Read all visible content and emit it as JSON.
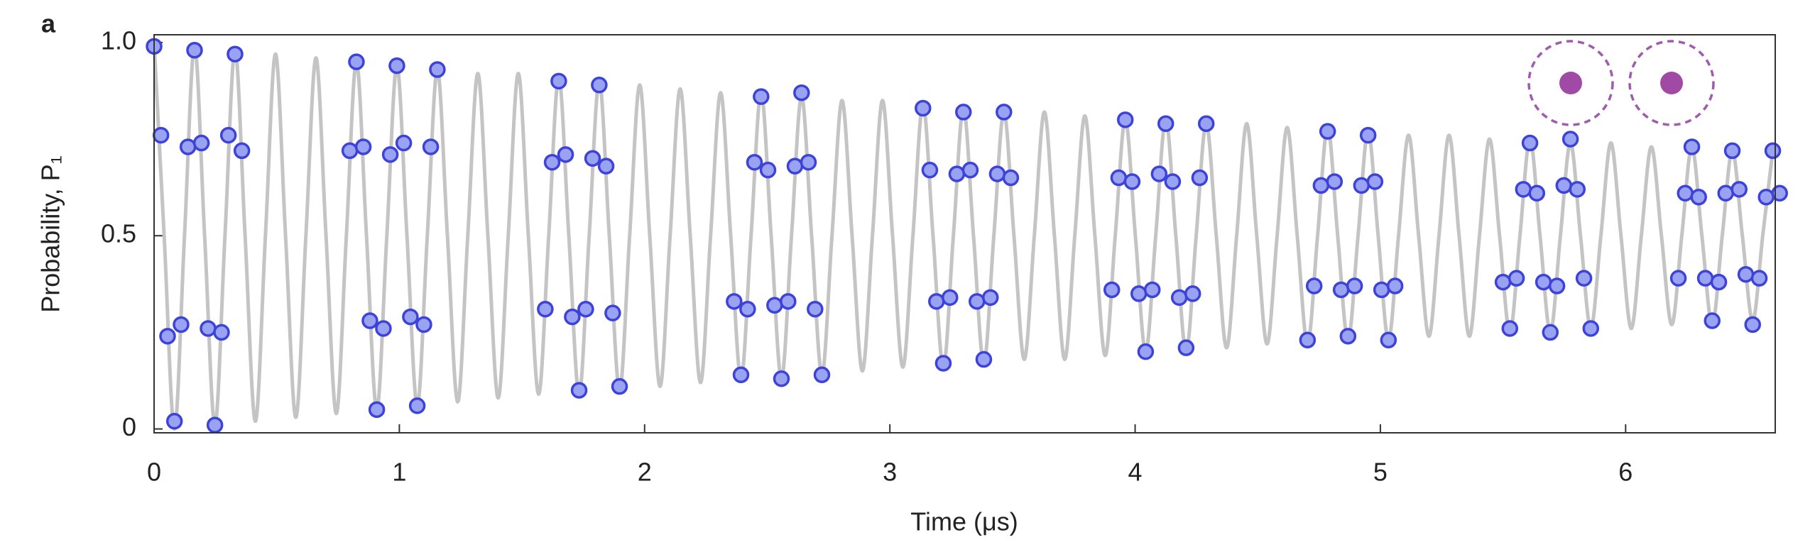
{
  "chart_data": {
    "type": "scatter",
    "panel_label": "a",
    "x_label": "Time (μs)",
    "y_label": "Probability, P₁",
    "xlim": [
      0,
      6.61
    ],
    "ylim": [
      -0.01,
      1.02
    ],
    "xticks": [
      0,
      1,
      2,
      3,
      4,
      5,
      6
    ],
    "yticks": [
      0,
      0.5,
      {
        "value": 1,
        "label": "1.0"
      }
    ],
    "series": [
      {
        "kind": "line",
        "color": "#c4c4c4",
        "x": [
          0,
          0.041,
          0.083,
          0.124,
          0.165,
          0.206,
          0.248,
          0.289,
          0.33,
          0.371,
          0.413,
          0.454,
          0.495,
          0.536,
          0.578,
          0.619,
          0.66,
          0.701,
          0.743,
          0.784,
          0.825,
          0.866,
          0.908,
          0.949,
          0.99,
          1.031,
          1.073,
          1.114,
          1.155,
          1.196,
          1.238,
          1.279,
          1.32,
          1.361,
          1.403,
          1.444,
          1.485,
          1.526,
          1.568,
          1.609,
          1.65,
          1.691,
          1.733,
          1.774,
          1.815,
          1.856,
          1.898,
          1.939,
          1.98,
          2.021,
          2.063,
          2.104,
          2.145,
          2.186,
          2.228,
          2.269,
          2.31,
          2.351,
          2.393,
          2.434,
          2.475,
          2.516,
          2.558,
          2.599,
          2.64,
          2.681,
          2.723,
          2.764,
          2.805,
          2.846,
          2.888,
          2.929,
          2.97,
          3.011,
          3.053,
          3.094,
          3.135,
          3.176,
          3.218,
          3.259,
          3.3,
          3.341,
          3.383,
          3.424,
          3.465,
          3.506,
          3.548,
          3.589,
          3.63,
          3.671,
          3.713,
          3.754,
          3.795,
          3.836,
          3.878,
          3.919,
          3.96,
          4.001,
          4.043,
          4.084,
          4.125,
          4.166,
          4.208,
          4.249,
          4.29,
          4.331,
          4.373,
          4.414,
          4.455,
          4.496,
          4.538,
          4.579,
          4.62,
          4.661,
          4.703,
          4.744,
          4.785,
          4.826,
          4.868,
          4.909,
          4.95,
          4.991,
          5.033,
          5.074,
          5.115,
          5.156,
          5.198,
          5.239,
          5.28,
          5.321,
          5.363,
          5.404,
          5.445,
          5.486,
          5.528,
          5.569,
          5.61,
          5.651,
          5.693,
          5.734,
          5.775,
          5.816,
          5.858,
          5.899,
          5.94,
          5.981,
          6.023,
          6.064,
          6.105,
          6.146,
          6.188,
          6.229,
          6.27,
          6.311,
          6.353,
          6.394,
          6.435,
          6.476,
          6.518,
          6.559,
          6.6
        ],
        "values": [
          1.0,
          0.5,
          0.0,
          0.5,
          0.99,
          0.5,
          0.01,
          0.5,
          0.98,
          0.5,
          0.02,
          0.5,
          0.97,
          0.5,
          0.03,
          0.5,
          0.96,
          0.5,
          0.04,
          0.5,
          0.95,
          0.5,
          0.05,
          0.5,
          0.94,
          0.5,
          0.06,
          0.5,
          0.93,
          0.5,
          0.07,
          0.5,
          0.92,
          0.5,
          0.08,
          0.5,
          0.92,
          0.5,
          0.09,
          0.5,
          0.91,
          0.5,
          0.09,
          0.5,
          0.9,
          0.5,
          0.1,
          0.5,
          0.89,
          0.5,
          0.11,
          0.5,
          0.88,
          0.5,
          0.12,
          0.5,
          0.87,
          0.5,
          0.13,
          0.5,
          0.87,
          0.5,
          0.13,
          0.5,
          0.86,
          0.5,
          0.14,
          0.5,
          0.85,
          0.5,
          0.15,
          0.5,
          0.85,
          0.5,
          0.16,
          0.5,
          0.84,
          0.5,
          0.16,
          0.5,
          0.83,
          0.5,
          0.17,
          0.5,
          0.82,
          0.5,
          0.18,
          0.5,
          0.82,
          0.5,
          0.18,
          0.5,
          0.81,
          0.5,
          0.19,
          0.5,
          0.8,
          0.5,
          0.2,
          0.5,
          0.8,
          0.5,
          0.2,
          0.5,
          0.79,
          0.5,
          0.21,
          0.5,
          0.79,
          0.5,
          0.22,
          0.5,
          0.78,
          0.5,
          0.22,
          0.5,
          0.78,
          0.5,
          0.23,
          0.5,
          0.77,
          0.5,
          0.23,
          0.5,
          0.76,
          0.5,
          0.24,
          0.5,
          0.76,
          0.5,
          0.24,
          0.5,
          0.75,
          0.5,
          0.25,
          0.5,
          0.75,
          0.5,
          0.25,
          0.5,
          0.74,
          0.5,
          0.26,
          0.5,
          0.74,
          0.5,
          0.26,
          0.5,
          0.73,
          0.5,
          0.27,
          0.5,
          0.73,
          0.5,
          0.27,
          0.5,
          0.72,
          0.5,
          0.28,
          0.5,
          0.72
        ]
      },
      {
        "kind": "scatter",
        "color": "#3d43d8",
        "x": [
          0,
          0.028,
          0.055,
          0.083,
          0.11,
          0.138,
          0.165,
          0.193,
          0.22,
          0.248,
          0.275,
          0.303,
          0.33,
          0.358,
          0.798,
          0.825,
          0.853,
          0.88,
          0.908,
          0.935,
          0.963,
          0.99,
          1.018,
          1.045,
          1.073,
          1.1,
          1.128,
          1.155,
          1.595,
          1.623,
          1.65,
          1.678,
          1.705,
          1.733,
          1.76,
          1.788,
          1.815,
          1.843,
          1.87,
          1.898,
          2.365,
          2.393,
          2.42,
          2.448,
          2.475,
          2.503,
          2.53,
          2.558,
          2.585,
          2.613,
          2.64,
          2.668,
          2.695,
          2.723,
          3.135,
          3.163,
          3.19,
          3.218,
          3.245,
          3.273,
          3.3,
          3.328,
          3.355,
          3.383,
          3.41,
          3.438,
          3.465,
          3.493,
          3.905,
          3.933,
          3.96,
          3.988,
          4.015,
          4.043,
          4.07,
          4.098,
          4.125,
          4.153,
          4.18,
          4.208,
          4.235,
          4.263,
          4.29,
          4.703,
          4.73,
          4.758,
          4.785,
          4.813,
          4.84,
          4.868,
          4.895,
          4.923,
          4.95,
          4.978,
          5.005,
          5.033,
          5.06,
          5.5,
          5.528,
          5.555,
          5.583,
          5.61,
          5.638,
          5.665,
          5.693,
          5.72,
          5.748,
          5.775,
          5.803,
          5.83,
          5.858,
          6.215,
          6.243,
          6.27,
          6.298,
          6.325,
          6.353,
          6.38,
          6.408,
          6.435,
          6.463,
          6.49,
          6.518,
          6.545,
          6.573,
          6.6,
          6.628
        ],
        "values": [
          0.99,
          0.76,
          0.24,
          0.02,
          0.27,
          0.73,
          0.98,
          0.74,
          0.26,
          0.01,
          0.25,
          0.76,
          0.97,
          0.72,
          0.72,
          0.95,
          0.73,
          0.28,
          0.05,
          0.26,
          0.71,
          0.94,
          0.74,
          0.29,
          0.06,
          0.27,
          0.73,
          0.93,
          0.31,
          0.69,
          0.9,
          0.71,
          0.29,
          0.1,
          0.31,
          0.7,
          0.89,
          0.68,
          0.3,
          0.11,
          0.33,
          0.14,
          0.31,
          0.69,
          0.86,
          0.67,
          0.32,
          0.13,
          0.33,
          0.68,
          0.87,
          0.69,
          0.31,
          0.14,
          0.83,
          0.67,
          0.33,
          0.17,
          0.34,
          0.66,
          0.82,
          0.67,
          0.33,
          0.18,
          0.34,
          0.66,
          0.82,
          0.65,
          0.36,
          0.65,
          0.8,
          0.64,
          0.35,
          0.2,
          0.36,
          0.66,
          0.79,
          0.64,
          0.34,
          0.21,
          0.35,
          0.65,
          0.79,
          0.23,
          0.37,
          0.63,
          0.77,
          0.64,
          0.36,
          0.24,
          0.37,
          0.63,
          0.76,
          0.64,
          0.36,
          0.23,
          0.37,
          0.38,
          0.26,
          0.39,
          0.62,
          0.74,
          0.61,
          0.38,
          0.25,
          0.37,
          0.63,
          0.75,
          0.62,
          0.39,
          0.26,
          0.39,
          0.61,
          0.73,
          0.6,
          0.39,
          0.28,
          0.38,
          0.61,
          0.72,
          0.62,
          0.4,
          0.27,
          0.39,
          0.6,
          0.72,
          0.61
        ]
      }
    ]
  }
}
